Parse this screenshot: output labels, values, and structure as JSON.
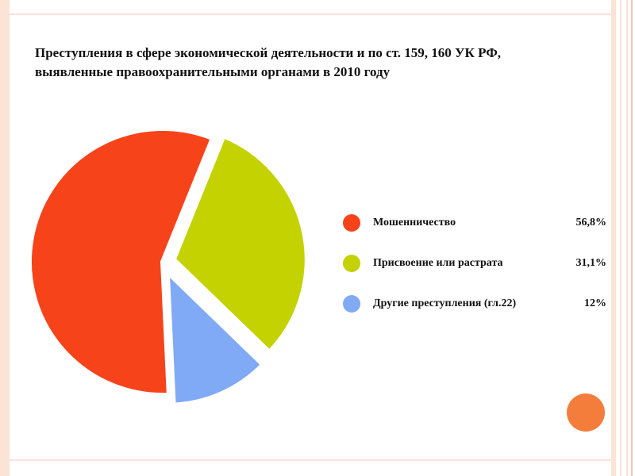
{
  "chart_data": {
    "type": "pie",
    "title": [
      "Преступления в сфере экономической деятельности и по ст. 159, 160 УК РФ,",
      "выявленные правоохранительными органами в 2010 году"
    ],
    "categories": [
      "Мошенничество",
      "Присвоение или растрата",
      "Другие преступления (гл.22)"
    ],
    "values": [
      56.8,
      31.1,
      12
    ],
    "value_labels": [
      "56,8%",
      "31,1%",
      "12%"
    ],
    "colors": [
      "#f6431a",
      "#c3d200",
      "#80a9f6"
    ]
  }
}
